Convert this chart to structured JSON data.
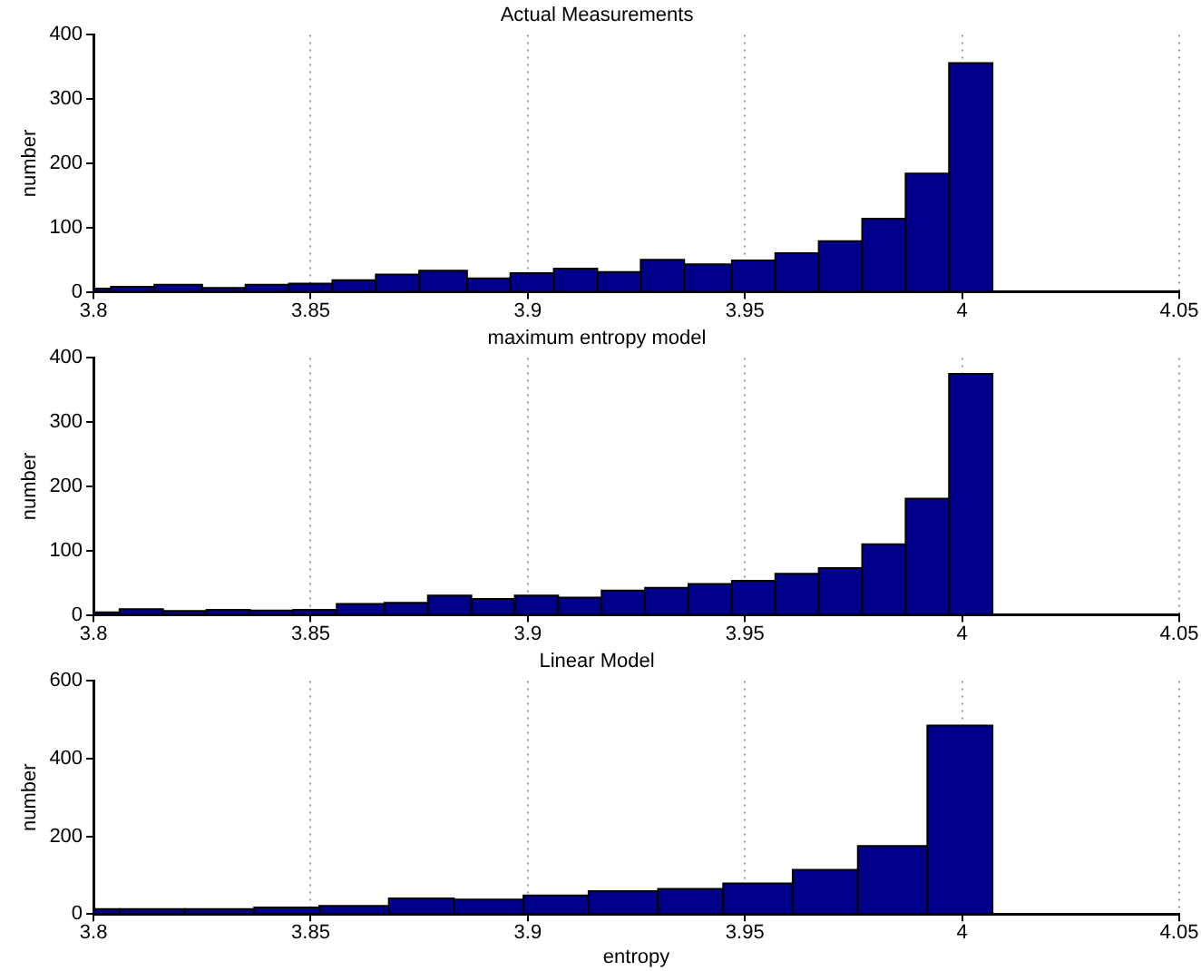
{
  "chart_data": [
    {
      "type": "histogram",
      "title": "Actual Measurements",
      "ylabel": "number",
      "color": "#00008b",
      "bins": [
        3.8,
        3.804,
        3.814,
        3.825,
        3.835,
        3.845,
        3.855,
        3.865,
        3.875,
        3.886,
        3.896,
        3.906,
        3.916,
        3.926,
        3.936,
        3.947,
        3.957,
        3.967,
        3.977,
        3.987,
        3.997,
        4.007
      ],
      "values": [
        5,
        8,
        11,
        6,
        11,
        13,
        18,
        27,
        33,
        21,
        29,
        36,
        31,
        50,
        43,
        49,
        60,
        79,
        114,
        184,
        356
      ],
      "xlim": [
        3.8,
        4.05
      ],
      "xticks": [
        3.8,
        3.85,
        3.9,
        3.95,
        4,
        4.05
      ],
      "ylim": [
        0,
        400
      ],
      "yticks": [
        0,
        100,
        200,
        300,
        400
      ],
      "grid": "x",
      "line_style": "dotted"
    },
    {
      "type": "histogram",
      "title": "maximum entropy model",
      "ylabel": "number",
      "color": "#00008b",
      "bins": [
        3.8,
        3.806,
        3.816,
        3.826,
        3.836,
        3.846,
        3.856,
        3.867,
        3.877,
        3.887,
        3.897,
        3.907,
        3.917,
        3.927,
        3.937,
        3.947,
        3.957,
        3.967,
        3.977,
        3.987,
        3.997,
        4.007
      ],
      "values": [
        4,
        9,
        6,
        8,
        7,
        8,
        17,
        19,
        30,
        25,
        30,
        27,
        38,
        42,
        48,
        53,
        64,
        73,
        110,
        181,
        375
      ],
      "xlim": [
        3.8,
        4.05
      ],
      "xticks": [
        3.8,
        3.85,
        3.9,
        3.95,
        4,
        4.05
      ],
      "ylim": [
        0,
        400
      ],
      "yticks": [
        0,
        100,
        200,
        300,
        400
      ],
      "grid": "x",
      "line_style": "dotted"
    },
    {
      "type": "histogram",
      "title": "Linear Model",
      "xlabel": "entropy",
      "ylabel": "number",
      "color": "#00008b",
      "bins": [
        3.8,
        3.806,
        3.821,
        3.837,
        3.852,
        3.868,
        3.883,
        3.899,
        3.914,
        3.93,
        3.945,
        3.961,
        3.976,
        3.992,
        4.007
      ],
      "values": [
        13,
        13,
        13,
        17,
        21,
        40,
        37,
        48,
        59,
        65,
        79,
        114,
        175,
        485
      ],
      "xlim": [
        3.8,
        4.05
      ],
      "xticks": [
        3.8,
        3.85,
        3.9,
        3.95,
        4,
        4.05
      ],
      "ylim": [
        0,
        600
      ],
      "yticks": [
        0,
        200,
        400,
        600
      ],
      "grid": "x",
      "line_style": "dotted"
    }
  ]
}
